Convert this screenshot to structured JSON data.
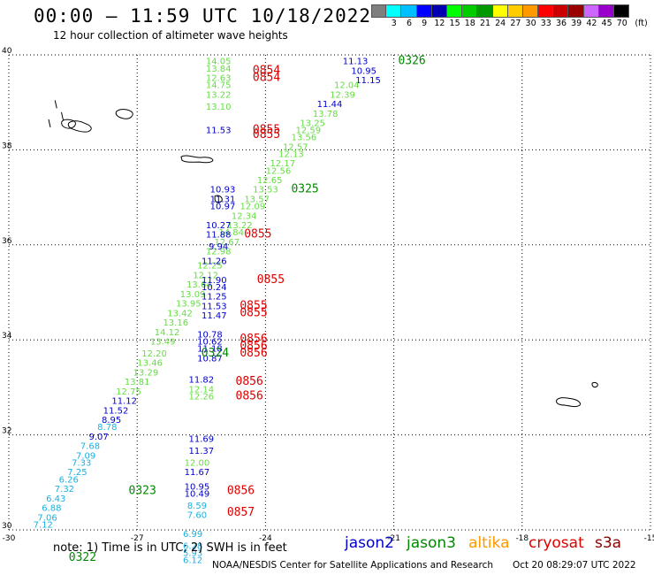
{
  "header": {
    "title": "00:00 – 11:59 UTC 10/18/2022",
    "subtitle": "12 hour collection of altimeter wave heights"
  },
  "colorbar": {
    "unit": "(ft)",
    "bins": [
      {
        "label": "",
        "color": "#7f7f7f"
      },
      {
        "label": "3",
        "color": "#00ffff"
      },
      {
        "label": "6",
        "color": "#00bfff"
      },
      {
        "label": "9",
        "color": "#0000ff"
      },
      {
        "label": "12",
        "color": "#0000b0"
      },
      {
        "label": "15",
        "color": "#00ff00"
      },
      {
        "label": "18",
        "color": "#00cc00"
      },
      {
        "label": "21",
        "color": "#009900"
      },
      {
        "label": "24",
        "color": "#ffff00"
      },
      {
        "label": "27",
        "color": "#ffcc00"
      },
      {
        "label": "30",
        "color": "#ff9900"
      },
      {
        "label": "33",
        "color": "#ff0000"
      },
      {
        "label": "36",
        "color": "#cc0000"
      },
      {
        "label": "39",
        "color": "#990000"
      },
      {
        "label": "42",
        "color": "#cc66ff"
      },
      {
        "label": "45",
        "color": "#9900cc"
      },
      {
        "label": "70",
        "color": "#000000"
      }
    ]
  },
  "map": {
    "lon_range": [
      -30,
      -15
    ],
    "lat_range": [
      30,
      40
    ],
    "lon_ticks": [
      "-30",
      "-27",
      "-24",
      "-21",
      "-18",
      "-15"
    ],
    "lat_ticks": [
      "30",
      "32",
      "34",
      "36",
      "38",
      "40"
    ],
    "grid": "dotted"
  },
  "colors": {
    "jason2": "#0000cc",
    "jason3": "#008800",
    "altika": "#ff9900",
    "cryosat": "#dd0000",
    "s3a": "#880000",
    "swh_low": "#1ab0e0",
    "swh_mid": "#66dd44"
  },
  "chart_data": {
    "type": "scatter",
    "title": "12 hour collection of altimeter wave heights",
    "x_axis": "longitude",
    "y_axis": "latitude",
    "xlim": [
      -30,
      -15
    ],
    "ylim": [
      30,
      40
    ],
    "swh_points": [
      {
        "lon": -21.9,
        "lat": 39.8,
        "v": "11.13",
        "c": "blue"
      },
      {
        "lon": -21.7,
        "lat": 39.6,
        "v": "10.95",
        "c": "blue"
      },
      {
        "lon": -21.6,
        "lat": 39.4,
        "v": "11.15",
        "c": "blue"
      },
      {
        "lon": -22.1,
        "lat": 39.3,
        "v": "12.04",
        "c": "green"
      },
      {
        "lon": -22.2,
        "lat": 39.1,
        "v": "12.39",
        "c": "green"
      },
      {
        "lon": -22.5,
        "lat": 38.9,
        "v": "11.44",
        "c": "blue"
      },
      {
        "lon": -22.6,
        "lat": 38.7,
        "v": "13.78",
        "c": "green"
      },
      {
        "lon": -22.9,
        "lat": 38.5,
        "v": "13.25",
        "c": "green"
      },
      {
        "lon": -23.0,
        "lat": 38.35,
        "v": "12.59",
        "c": "green"
      },
      {
        "lon": -23.1,
        "lat": 38.2,
        "v": "13.56",
        "c": "green"
      },
      {
        "lon": -23.3,
        "lat": 38.0,
        "v": "12.57",
        "c": "green"
      },
      {
        "lon": -23.4,
        "lat": 37.85,
        "v": "12.13",
        "c": "green"
      },
      {
        "lon": -23.6,
        "lat": 37.65,
        "v": "12.17",
        "c": "green"
      },
      {
        "lon": -23.7,
        "lat": 37.5,
        "v": "12.56",
        "c": "green"
      },
      {
        "lon": -23.9,
        "lat": 37.3,
        "v": "12.65",
        "c": "green"
      },
      {
        "lon": -24.0,
        "lat": 37.1,
        "v": "13.53",
        "c": "green"
      },
      {
        "lon": -24.2,
        "lat": 36.9,
        "v": "13.57",
        "c": "green"
      },
      {
        "lon": -24.3,
        "lat": 36.75,
        "v": "12.09",
        "c": "green"
      },
      {
        "lon": -24.5,
        "lat": 36.55,
        "v": "12.34",
        "c": "green"
      },
      {
        "lon": -24.6,
        "lat": 36.35,
        "v": "13.22",
        "c": "green"
      },
      {
        "lon": -24.8,
        "lat": 36.2,
        "v": "14.84",
        "c": "green"
      },
      {
        "lon": -24.9,
        "lat": 36.0,
        "v": "12.67",
        "c": "green"
      },
      {
        "lon": -25.1,
        "lat": 35.8,
        "v": "12.98",
        "c": "green"
      },
      {
        "lon": -25.3,
        "lat": 35.5,
        "v": "12.25",
        "c": "green"
      },
      {
        "lon": -25.4,
        "lat": 35.3,
        "v": "12.12",
        "c": "green"
      },
      {
        "lon": -25.55,
        "lat": 35.1,
        "v": "13.64",
        "c": "green"
      },
      {
        "lon": -25.7,
        "lat": 34.9,
        "v": "13.09",
        "c": "green"
      },
      {
        "lon": -25.8,
        "lat": 34.7,
        "v": "13.95",
        "c": "green"
      },
      {
        "lon": -26.0,
        "lat": 34.5,
        "v": "13.42",
        "c": "green"
      },
      {
        "lon": -26.1,
        "lat": 34.3,
        "v": "13.16",
        "c": "green"
      },
      {
        "lon": -26.3,
        "lat": 34.1,
        "v": "14.12",
        "c": "green"
      },
      {
        "lon": -26.4,
        "lat": 33.9,
        "v": "13.49",
        "c": "green"
      },
      {
        "lon": -26.6,
        "lat": 33.65,
        "v": "12.20",
        "c": "green"
      },
      {
        "lon": -26.7,
        "lat": 33.45,
        "v": "13.46",
        "c": "green"
      },
      {
        "lon": -26.8,
        "lat": 33.25,
        "v": "13.29",
        "c": "green"
      },
      {
        "lon": -27.0,
        "lat": 33.05,
        "v": "13.81",
        "c": "green"
      },
      {
        "lon": -27.2,
        "lat": 32.85,
        "v": "12.75",
        "c": "green"
      },
      {
        "lon": -27.3,
        "lat": 32.65,
        "v": "11.12",
        "c": "blue"
      },
      {
        "lon": -27.5,
        "lat": 32.45,
        "v": "11.52",
        "c": "blue"
      },
      {
        "lon": -27.6,
        "lat": 32.25,
        "v": "8.95",
        "c": "blue"
      },
      {
        "lon": -27.7,
        "lat": 32.1,
        "v": "8.78",
        "c": "cyan"
      },
      {
        "lon": -27.9,
        "lat": 31.9,
        "v": "9.07",
        "c": "blue"
      },
      {
        "lon": -28.1,
        "lat": 31.7,
        "v": "7.68",
        "c": "cyan"
      },
      {
        "lon": -28.2,
        "lat": 31.5,
        "v": "7.09",
        "c": "cyan"
      },
      {
        "lon": -28.3,
        "lat": 31.35,
        "v": "7.33",
        "c": "cyan"
      },
      {
        "lon": -28.4,
        "lat": 31.15,
        "v": "7.25",
        "c": "cyan"
      },
      {
        "lon": -28.6,
        "lat": 31.0,
        "v": "6.26",
        "c": "cyan"
      },
      {
        "lon": -28.7,
        "lat": 30.8,
        "v": "7.32",
        "c": "cyan"
      },
      {
        "lon": -28.9,
        "lat": 30.6,
        "v": "6.43",
        "c": "cyan"
      },
      {
        "lon": -29.0,
        "lat": 30.4,
        "v": "6.88",
        "c": "cyan"
      },
      {
        "lon": -29.1,
        "lat": 30.2,
        "v": "7.06",
        "c": "cyan"
      },
      {
        "lon": -29.2,
        "lat": 30.05,
        "v": "7.12",
        "c": "cyan"
      },
      {
        "lon": -25.1,
        "lat": 39.8,
        "v": "14.05",
        "c": "green"
      },
      {
        "lon": -25.1,
        "lat": 39.65,
        "v": "13.84",
        "c": "green"
      },
      {
        "lon": -25.1,
        "lat": 39.45,
        "v": "12.63",
        "c": "green"
      },
      {
        "lon": -25.1,
        "lat": 39.3,
        "v": "14.75",
        "c": "green"
      },
      {
        "lon": -25.1,
        "lat": 39.1,
        "v": "13.22",
        "c": "green"
      },
      {
        "lon": -25.1,
        "lat": 38.85,
        "v": "13.10",
        "c": "green"
      },
      {
        "lon": -25.1,
        "lat": 38.35,
        "v": "11.53",
        "c": "blue"
      },
      {
        "lon": -25.0,
        "lat": 37.1,
        "v": "10.93",
        "c": "blue"
      },
      {
        "lon": -25.0,
        "lat": 36.9,
        "v": "11.31",
        "c": "blue"
      },
      {
        "lon": -25.0,
        "lat": 36.75,
        "v": "10.97",
        "c": "blue"
      },
      {
        "lon": -25.1,
        "lat": 36.35,
        "v": "10.27",
        "c": "blue"
      },
      {
        "lon": -25.1,
        "lat": 36.15,
        "v": "11.88",
        "c": "blue"
      },
      {
        "lon": -25.1,
        "lat": 35.9,
        "v": "9.94",
        "c": "blue"
      },
      {
        "lon": -25.2,
        "lat": 35.6,
        "v": "11.26",
        "c": "blue"
      },
      {
        "lon": -25.2,
        "lat": 35.2,
        "v": "11.90",
        "c": "blue"
      },
      {
        "lon": -25.2,
        "lat": 35.05,
        "v": "10.24",
        "c": "blue"
      },
      {
        "lon": -25.2,
        "lat": 34.85,
        "v": "11.25",
        "c": "blue"
      },
      {
        "lon": -25.2,
        "lat": 34.65,
        "v": "11.53",
        "c": "blue"
      },
      {
        "lon": -25.2,
        "lat": 34.45,
        "v": "11.47",
        "c": "blue"
      },
      {
        "lon": -25.3,
        "lat": 34.05,
        "v": "10.78",
        "c": "blue"
      },
      {
        "lon": -25.3,
        "lat": 33.9,
        "v": "10.62",
        "c": "blue"
      },
      {
        "lon": -25.3,
        "lat": 33.75,
        "v": "11.18",
        "c": "blue"
      },
      {
        "lon": -25.3,
        "lat": 33.55,
        "v": "10.87",
        "c": "blue"
      },
      {
        "lon": -25.5,
        "lat": 33.1,
        "v": "11.82",
        "c": "blue"
      },
      {
        "lon": -25.5,
        "lat": 32.9,
        "v": "12.14",
        "c": "green"
      },
      {
        "lon": -25.5,
        "lat": 32.75,
        "v": "12.26",
        "c": "green"
      },
      {
        "lon": -25.5,
        "lat": 31.85,
        "v": "11.69",
        "c": "blue"
      },
      {
        "lon": -25.5,
        "lat": 31.6,
        "v": "11.37",
        "c": "blue"
      },
      {
        "lon": -25.6,
        "lat": 31.35,
        "v": "12.00",
        "c": "green"
      },
      {
        "lon": -25.6,
        "lat": 31.15,
        "v": "11.67",
        "c": "blue"
      },
      {
        "lon": -25.6,
        "lat": 30.85,
        "v": "10.95",
        "c": "blue"
      },
      {
        "lon": -25.6,
        "lat": 30.7,
        "v": "10.49",
        "c": "blue"
      },
      {
        "lon": -25.6,
        "lat": 30.45,
        "v": "8.59",
        "c": "cyan"
      },
      {
        "lon": -25.6,
        "lat": 30.25,
        "v": "7.60",
        "c": "cyan"
      },
      {
        "lon": -25.7,
        "lat": 29.85,
        "v": "6.99",
        "c": "cyan"
      },
      {
        "lon": -25.7,
        "lat": 29.6,
        "v": "6.28",
        "c": "cyan"
      },
      {
        "lon": -25.7,
        "lat": 29.45,
        "v": "5.93",
        "c": "cyan"
      },
      {
        "lon": -25.7,
        "lat": 29.3,
        "v": "6.12",
        "c": "cyan"
      }
    ],
    "time_labels": [
      {
        "lon": -20.9,
        "lat": 39.8,
        "t": "0326",
        "sat": "jason3"
      },
      {
        "lon": -24.3,
        "lat": 39.6,
        "t": "0854",
        "sat": "cryosat"
      },
      {
        "lon": -24.3,
        "lat": 39.45,
        "t": "0854",
        "sat": "cryosat"
      },
      {
        "lon": -24.3,
        "lat": 38.35,
        "t": "0855",
        "sat": "cryosat"
      },
      {
        "lon": -24.3,
        "lat": 38.25,
        "t": "0855",
        "sat": "cryosat"
      },
      {
        "lon": -23.4,
        "lat": 37.1,
        "t": "0325",
        "sat": "jason3"
      },
      {
        "lon": -24.5,
        "lat": 36.15,
        "t": "0855",
        "sat": "cryosat"
      },
      {
        "lon": -24.2,
        "lat": 35.2,
        "t": "0855",
        "sat": "cryosat"
      },
      {
        "lon": -24.6,
        "lat": 34.65,
        "t": "0855",
        "sat": "cryosat"
      },
      {
        "lon": -24.6,
        "lat": 34.5,
        "t": "0855",
        "sat": "cryosat"
      },
      {
        "lon": -24.6,
        "lat": 33.95,
        "t": "0856",
        "sat": "cryosat"
      },
      {
        "lon": -24.6,
        "lat": 33.8,
        "t": "0856",
        "sat": "cryosat"
      },
      {
        "lon": -24.6,
        "lat": 33.65,
        "t": "0856",
        "sat": "cryosat"
      },
      {
        "lon": -25.5,
        "lat": 33.65,
        "t": "0324",
        "sat": "jason3"
      },
      {
        "lon": -24.7,
        "lat": 33.05,
        "t": "0856",
        "sat": "cryosat"
      },
      {
        "lon": -24.7,
        "lat": 32.75,
        "t": "0856",
        "sat": "cryosat"
      },
      {
        "lon": -27.2,
        "lat": 30.75,
        "t": "0323",
        "sat": "jason3"
      },
      {
        "lon": -24.9,
        "lat": 30.75,
        "t": "0856",
        "sat": "cryosat"
      },
      {
        "lon": -24.9,
        "lat": 30.3,
        "t": "0857",
        "sat": "cryosat"
      },
      {
        "lon": -28.6,
        "lat": 29.35,
        "t": "0322",
        "sat": "jason3"
      }
    ],
    "islands": [
      {
        "lon": -28.6,
        "lat": 38.55,
        "shape": "flores"
      },
      {
        "lon": -28.3,
        "lat": 38.5,
        "shape": "faial"
      },
      {
        "lon": -27.3,
        "lat": 38.75,
        "shape": "terceira"
      },
      {
        "lon": -25.6,
        "lat": 37.8,
        "shape": "sao-miguel"
      },
      {
        "lon": -25.1,
        "lat": 36.97,
        "shape": "santa-maria"
      },
      {
        "lon": -16.9,
        "lat": 32.7,
        "shape": "madeira"
      },
      {
        "lon": -16.3,
        "lat": 33.05,
        "shape": "porto-santo"
      }
    ]
  },
  "legend": {
    "note": "note:  1) Time is in UTC;  2) SWH is in feet",
    "items": [
      {
        "label": "jason2",
        "color_key": "jason2"
      },
      {
        "label": "jason3",
        "color_key": "jason3"
      },
      {
        "label": "altika",
        "color_key": "altika"
      },
      {
        "label": "cryosat",
        "color_key": "cryosat"
      },
      {
        "label": "s3a",
        "color_key": "s3a"
      }
    ]
  },
  "footer": {
    "credit": "NOAA/NESDIS Center for Satellite Applications and Research",
    "timestamp": "Oct 20 08:29:07 UTC 2022"
  }
}
